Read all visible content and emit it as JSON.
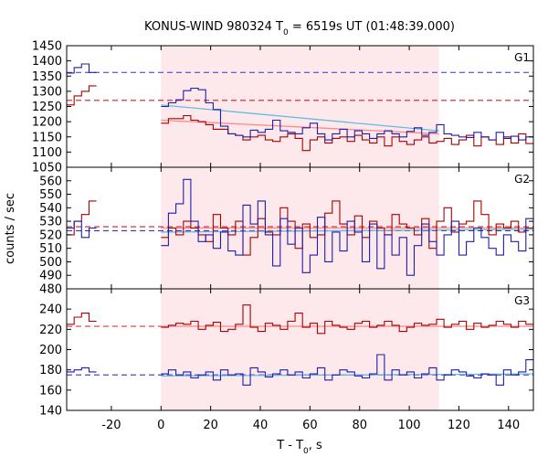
{
  "title": {
    "main": "KONUS-WIND 980324 T",
    "sub": "0",
    "rest": " = 6519s UT (01:48:39.000)"
  },
  "ylabel": "counts / sec",
  "xlabel": {
    "main": "T - T",
    "sub": "0",
    "rest": ", s"
  },
  "colors": {
    "red_series": "#aa0000",
    "blue_series": "#1e1eaa",
    "red_dashed": "#cc2222",
    "blue_dashed": "#3333cc",
    "red_fit": "#ff8888",
    "blue_fit": "#66bbdd",
    "interval_shade": "#fde8ec"
  },
  "chart_data": {
    "type": "line",
    "step": true,
    "x_range": [
      -38,
      150
    ],
    "x_ticks": [
      -20,
      0,
      20,
      40,
      60,
      80,
      100,
      120,
      140
    ],
    "shaded_interval": [
      0,
      112
    ],
    "panels": [
      {
        "name": "G1",
        "ylim": [
          1050,
          1450
        ],
        "y_ticks": [
          1050,
          1100,
          1150,
          1200,
          1250,
          1300,
          1350,
          1400,
          1450
        ],
        "background_levels": {
          "blue": 1362,
          "red": 1270
        },
        "blue_fit_line": {
          "x": [
            0,
            112
          ],
          "y": [
            1255,
            1170
          ]
        },
        "red_fit_line": {
          "x": [
            0,
            112
          ],
          "y": [
            1205,
            1160
          ]
        },
        "blue_series": {
          "pre": {
            "x_start": -38,
            "bin": 3,
            "values": [
              1360,
              1378,
              1390,
              1362
            ]
          },
          "post": {
            "x_start": 0,
            "bin": 3,
            "values": [
              1250,
              1262,
              1272,
              1302,
              1310,
              1305,
              1262,
              1240,
              1185,
              1160,
              1155,
              1150,
              1172,
              1165,
              1175,
              1205,
              1170,
              1165,
              1160,
              1180,
              1195,
              1160,
              1140,
              1160,
              1175,
              1150,
              1170,
              1160,
              1145,
              1160,
              1170,
              1160,
              1150,
              1168,
              1180,
              1155,
              1165,
              1190,
              1160,
              1155,
              1150,
              1148,
              1165,
              1150,
              1140,
              1165,
              1145,
              1152,
              1140,
              1150
            ]
          }
        },
        "red_series": {
          "pre": {
            "x_start": -38,
            "bin": 3,
            "values": [
              1255,
              1285,
              1300,
              1318
            ]
          },
          "post": {
            "x_start": 0,
            "bin": 3,
            "values": [
              1195,
              1210,
              1210,
              1220,
              1205,
              1200,
              1190,
              1175,
              1175,
              1160,
              1155,
              1140,
              1150,
              1155,
              1140,
              1135,
              1150,
              1160,
              1145,
              1105,
              1140,
              1150,
              1130,
              1145,
              1150,
              1135,
              1155,
              1140,
              1130,
              1150,
              1120,
              1150,
              1135,
              1125,
              1140,
              1150,
              1130,
              1135,
              1145,
              1125,
              1140,
              1155,
              1120,
              1150,
              1140,
              1125,
              1150,
              1130,
              1160,
              1128
            ]
          }
        }
      },
      {
        "name": "G2",
        "ylim": [
          480,
          570
        ],
        "y_ticks": [
          480,
          490,
          500,
          510,
          520,
          530,
          540,
          550,
          560
        ],
        "background_levels": {
          "blue": 523,
          "red": 526
        },
        "blue_fit_line": {
          "x": [
            0,
            150
          ],
          "y": [
            522,
            524
          ]
        },
        "red_fit_line": {
          "x": [
            0,
            150
          ],
          "y": [
            525,
            525
          ]
        },
        "blue_series": {
          "pre": {
            "x_start": -38,
            "bin": 3,
            "values": [
              525,
              530,
              518,
              525
            ]
          },
          "post": {
            "x_start": 0,
            "bin": 3,
            "values": [
              512,
              536,
              543,
              561,
              530,
              515,
              520,
              510,
              522,
              508,
              505,
              542,
              528,
              545,
              520,
              497,
              532,
              513,
              525,
              492,
              505,
              533,
              500,
              522,
              508,
              530,
              522,
              500,
              528,
              495,
              520,
              505,
              518,
              490,
              512,
              528,
              515,
              505,
              520,
              530,
              505,
              515,
              525,
              518,
              510,
              505,
              520,
              515,
              508,
              532
            ]
          }
        },
        "red_series": {
          "pre": {
            "x_start": -38,
            "bin": 3,
            "values": [
              520,
              530,
              535,
              545
            ]
          },
          "post": {
            "x_start": 0,
            "bin": 3,
            "values": [
              518,
              525,
              520,
              530,
              525,
              520,
              515,
              535,
              525,
              520,
              530,
              505,
              518,
              532,
              522,
              520,
              540,
              530,
              510,
              528,
              518,
              520,
              536,
              545,
              528,
              520,
              534,
              518,
              530,
              525,
              520,
              535,
              528,
              525,
              520,
              532,
              510,
              530,
              540,
              522,
              528,
              530,
              545,
              535,
              520,
              528,
              525,
              530,
              522,
              525
            ]
          }
        }
      },
      {
        "name": "G3",
        "ylim": [
          140,
          260
        ],
        "y_ticks": [
          140,
          160,
          180,
          200,
          220,
          240
        ],
        "background_levels": {
          "blue": 175,
          "red": 223
        },
        "blue_fit_line": {
          "x": [
            0,
            150
          ],
          "y": [
            174,
            176
          ]
        },
        "red_fit_line": {
          "x": [
            0,
            150
          ],
          "y": [
            223,
            223
          ]
        },
        "blue_series": {
          "pre": {
            "x_start": -38,
            "bin": 3,
            "values": [
              178,
              180,
              182,
              178
            ]
          },
          "post": {
            "x_start": 0,
            "bin": 3,
            "values": [
              176,
              180,
              175,
              178,
              172,
              175,
              178,
              170,
              180,
              175,
              176,
              165,
              182,
              178,
              173,
              176,
              180,
              175,
              178,
              172,
              176,
              182,
              170,
              175,
              180,
              178,
              174,
              172,
              176,
              195,
              170,
              180,
              175,
              178,
              172,
              176,
              182,
              170,
              175,
              180,
              178,
              174,
              172,
              176,
              175,
              165,
              180,
              175,
              178,
              190
            ]
          }
        },
        "red_series": {
          "pre": {
            "x_start": -38,
            "bin": 3,
            "values": [
              225,
              232,
              236,
              228
            ]
          },
          "post": {
            "x_start": 0,
            "bin": 3,
            "values": [
              222,
              224,
              226,
              225,
              228,
              220,
              224,
              227,
              218,
              220,
              225,
              244,
              222,
              218,
              226,
              224,
              220,
              228,
              236,
              222,
              226,
              216,
              228,
              224,
              222,
              220,
              226,
              228,
              222,
              224,
              228,
              224,
              218,
              222,
              226,
              224,
              225,
              230,
              222,
              225,
              228,
              220,
              226,
              222,
              224,
              228,
              225,
              222,
              228,
              225
            ]
          }
        }
      }
    ]
  }
}
